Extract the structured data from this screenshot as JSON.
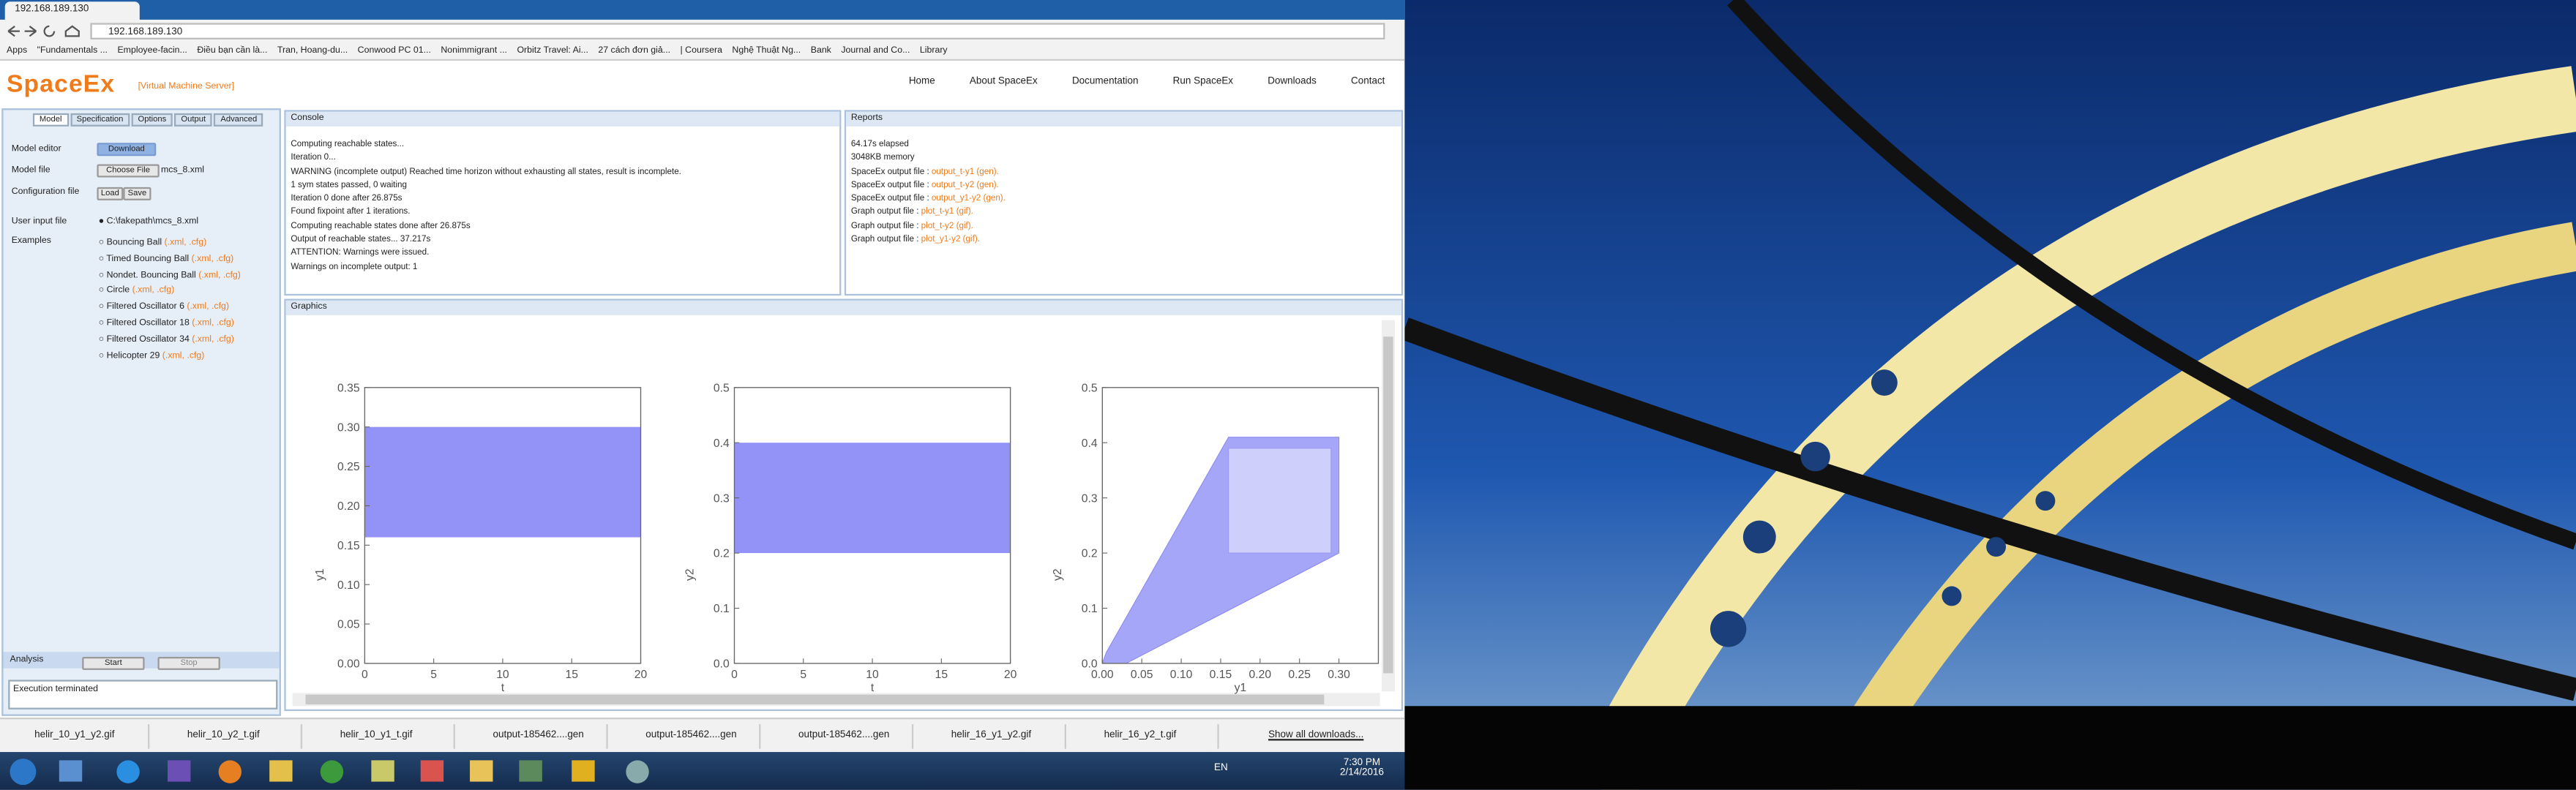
{
  "browser": {
    "tab": "192.168.189.130",
    "address": "192.168.189.130",
    "bookmarks": [
      "Apps",
      "\"Fundamentals ...",
      "Employee-facin...",
      "Điều bạn cần là...",
      "Tran, Hoang-du...",
      "Conwood PC 01...",
      "Nonimmigrant ...",
      "Orbitz Travel: Ai...",
      "27 cách đơn giả...",
      "| Coursera",
      "Nghệ Thuật Ng...",
      "Bank",
      "Journal and Co...",
      "Library"
    ]
  },
  "site": {
    "logo": "SpaceEx",
    "subtitle": "[Virtual Machine Server]",
    "nav": [
      "Home",
      "About SpaceEx",
      "Documentation",
      "Run SpaceEx",
      "Downloads",
      "Contact"
    ]
  },
  "left_panel": {
    "tabs": [
      "Model",
      "Specification",
      "Options",
      "Output",
      "Advanced"
    ],
    "model_editor_label": "Model editor",
    "download": "Download",
    "model_file_label": "Model file",
    "choose_file": "Choose File",
    "model_file": "mcs_8.xml",
    "config_label": "Configuration file",
    "load": "Load",
    "save": "Save",
    "user_input_label": "User input file",
    "user_input": "C:\\fakepath\\mcs_8.xml",
    "examples_label": "Examples",
    "examples": [
      {
        "name": "Bouncing Ball ",
        "files": "(.xml, .cfg)"
      },
      {
        "name": "Timed Bouncing Ball ",
        "files": "(.xml, .cfg)"
      },
      {
        "name": "Nondet. Bouncing Ball ",
        "files": "(.xml, .cfg)"
      },
      {
        "name": "Circle ",
        "files": "(.xml, .cfg)"
      },
      {
        "name": "Filtered Oscillator 6 ",
        "files": "(.xml, .cfg)"
      },
      {
        "name": "Filtered Oscillator 18 ",
        "files": "(.xml, .cfg)"
      },
      {
        "name": "Filtered Oscillator 34 ",
        "files": "(.xml, .cfg)"
      },
      {
        "name": "Helicopter 29 ",
        "files": "(.xml, .cfg)"
      }
    ],
    "analysis_label": "Analysis",
    "start": "Start",
    "stop": "Stop",
    "status": "Execution terminated"
  },
  "console": {
    "title": "Console",
    "lines": [
      "Computing reachable states...",
      "Iteration 0...",
      "WARNING (incomplete output) Reached time horizon without exhausting all states, result is incomplete.",
      "1 sym states passed, 0 waiting",
      "Iteration 0 done after 26.875s",
      "Found fixpoint after 1 iterations.",
      "Computing reachable states done after 26.875s",
      "Output of reachable states... 37.217s",
      "ATTENTION: Warnings were issued.",
      "Warnings on incomplete output: 1"
    ]
  },
  "reports": {
    "title": "Reports",
    "lines": [
      {
        "label": "64.17s elapsed"
      },
      {
        "label": "3048KB memory"
      },
      {
        "label": "SpaceEx output file : ",
        "file": "output_t-y1 (gen)."
      },
      {
        "label": "SpaceEx output file : ",
        "file": "output_t-y2 (gen)."
      },
      {
        "label": "SpaceEx output file : ",
        "file": "output_y1-y2 (gen)."
      },
      {
        "label": "Graph output file : ",
        "file": "plot_t-y1 (gif)."
      },
      {
        "label": "Graph output file : ",
        "file": "plot_t-y2 (gif)."
      },
      {
        "label": "Graph output file : ",
        "file": "plot_y1-y2 (gif)."
      }
    ]
  },
  "graphics": {
    "title": "Graphics",
    "plots": [
      {
        "xlabel": "t",
        "ylabel": "y1",
        "xlim": [
          0,
          20
        ],
        "ylim": [
          0,
          0.35
        ],
        "xticks": [
          0,
          5,
          10,
          15,
          20
        ],
        "yticks": [
          {
            "value": 0,
            "label": "0.00"
          },
          {
            "value": 0.05,
            "label": "0.05"
          },
          {
            "value": 0.1,
            "label": "0.10"
          },
          {
            "value": 0.15,
            "label": "0.15"
          },
          {
            "value": 0.2,
            "label": "0.20"
          },
          {
            "value": 0.25,
            "label": "0.25"
          },
          {
            "value": 0.3,
            "label": "0.30"
          },
          {
            "value": 0.35,
            "label": "0.35"
          }
        ],
        "color": "#9393f7",
        "band": {
          "x": [
            0,
            20
          ],
          "y": [
            0.16,
            0.3
          ]
        }
      },
      {
        "xlabel": "t",
        "ylabel": "y2",
        "xlim": [
          0,
          20
        ],
        "ylim": [
          0,
          0.5
        ],
        "xticks": [
          0,
          5,
          10,
          15,
          20
        ],
        "yticks": [
          {
            "value": 0,
            "label": "0.0"
          },
          {
            "value": 0.1,
            "label": "0.1"
          },
          {
            "value": 0.2,
            "label": "0.2"
          },
          {
            "value": 0.3,
            "label": "0.3"
          },
          {
            "value": 0.4,
            "label": "0.4"
          },
          {
            "value": 0.5,
            "label": "0.5"
          }
        ],
        "color": "#9393f7",
        "band": {
          "x": [
            0,
            20
          ],
          "y": [
            0.2,
            0.4
          ]
        }
      },
      {
        "xlabel": "y1",
        "ylabel": "y2",
        "xlim": [
          0,
          0.35
        ],
        "ylim": [
          0,
          0.5
        ],
        "xticks": [
          {
            "value": 0,
            "label": "0.00"
          },
          {
            "value": 0.05,
            "label": "0.05"
          },
          {
            "value": 0.1,
            "label": "0.10"
          },
          {
            "value": 0.15,
            "label": "0.15"
          },
          {
            "value": 0.2,
            "label": "0.20"
          },
          {
            "value": 0.25,
            "label": "0.25"
          },
          {
            "value": 0.3,
            "label": "0.30"
          }
        ],
        "yticks": [
          {
            "value": 0,
            "label": "0.0"
          },
          {
            "value": 0.1,
            "label": "0.1"
          },
          {
            "value": 0.2,
            "label": "0.2"
          },
          {
            "value": 0.3,
            "label": "0.3"
          },
          {
            "value": 0.4,
            "label": "0.4"
          },
          {
            "value": 0.5,
            "label": "0.5"
          }
        ],
        "color": "#a6a6f8",
        "region": {
          "x": [
            0,
            0.005,
            0.16,
            0.3,
            0.3,
            0.03,
            0
          ],
          "y": [
            0,
            0.02,
            0.41,
            0.41,
            0.2,
            0,
            0
          ]
        },
        "inner_color": "#cfcffc",
        "inner_box": {
          "x": [
            0.16,
            0.29
          ],
          "y": [
            0.2,
            0.39
          ]
        }
      }
    ]
  },
  "downloads": {
    "files": [
      "helir_10_y1_y2.gif",
      "helir_10_y2_t.gif",
      "helir_10_y1_t.gif",
      "output-185462....gen",
      "output-185462....gen",
      "output-185462....gen",
      "helir_16_y1_y2.gif",
      "helir_16_y2_t.gif"
    ],
    "show_all": "Show all downloads..."
  },
  "taskbar": {
    "language": "EN",
    "time": "7:30 PM",
    "date": "2/14/2016"
  }
}
